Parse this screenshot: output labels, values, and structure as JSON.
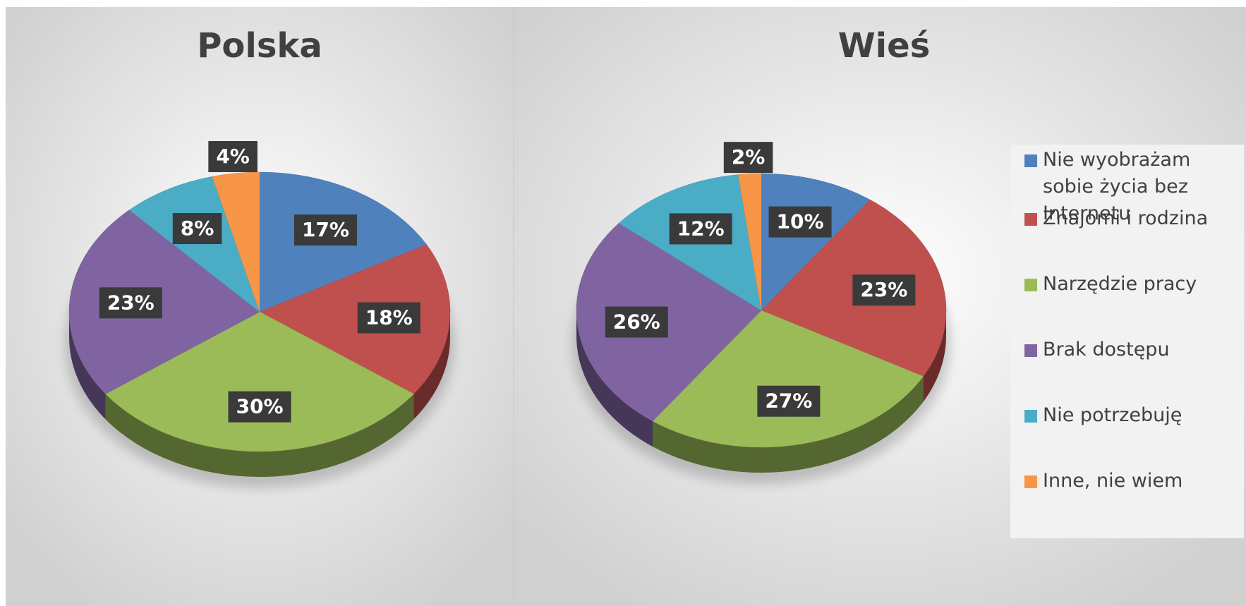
{
  "chart_data": [
    {
      "type": "pie",
      "title": "Polska",
      "categories": [
        "Nie wyobrażam sobie życia bez Internetu",
        "Znajomi i rodzina",
        "Narzędzie pracy",
        "Brak dostępu",
        "Nie potrzebuję",
        "Inne, nie wiem"
      ],
      "values": [
        17,
        18,
        30,
        23,
        8,
        4
      ],
      "value_labels": [
        "17%",
        "18%",
        "30%",
        "23%",
        "8%",
        "4%"
      ],
      "colors": [
        "#4f81bd",
        "#c0504d",
        "#9bbb59",
        "#8064a2",
        "#4bacc6",
        "#f79646"
      ],
      "legend": false
    },
    {
      "type": "pie",
      "title": "Wieś",
      "categories": [
        "Nie wyobrażam sobie życia bez Internetu",
        "Znajomi i rodzina",
        "Narzędzie pracy",
        "Brak dostępu",
        "Nie potrzebuję",
        "Inne, nie wiem"
      ],
      "values": [
        10,
        23,
        27,
        26,
        12,
        2
      ],
      "value_labels": [
        "10%",
        "23%",
        "27%",
        "26%",
        "12%",
        "2%"
      ],
      "colors": [
        "#4f81bd",
        "#c0504d",
        "#9bbb59",
        "#8064a2",
        "#4bacc6",
        "#f79646"
      ],
      "legend": true,
      "legend_position": "right"
    }
  ]
}
